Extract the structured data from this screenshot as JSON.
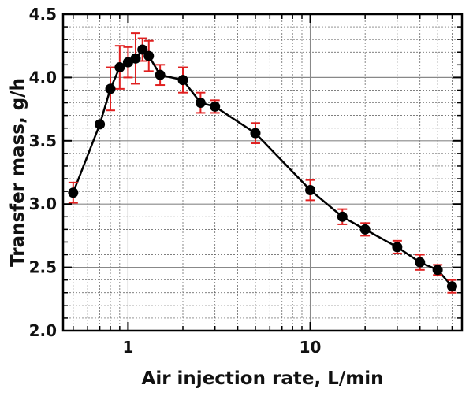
{
  "chart_data": {
    "type": "line",
    "title": "",
    "xlabel": "Air injection rate, L/min",
    "ylabel": "Transfer mass, g/h",
    "xscale": "log",
    "xlim": [
      0.44,
      68
    ],
    "ylim": [
      2.0,
      4.5
    ],
    "xticks": [
      {
        "value": 1,
        "label": "1"
      },
      {
        "value": 10,
        "label": "10"
      }
    ],
    "yticks": [
      {
        "value": 2.0,
        "label": "2.0"
      },
      {
        "value": 2.5,
        "label": "2.5"
      },
      {
        "value": 3.0,
        "label": "3.0"
      },
      {
        "value": 3.5,
        "label": "3.5"
      },
      {
        "value": 4.0,
        "label": "4.0"
      },
      {
        "value": 4.5,
        "label": "4.5"
      }
    ],
    "grid": true,
    "marker_color": "#000000",
    "errorbar_color": "#e02020",
    "series": [
      {
        "x": [
          0.5,
          0.7,
          0.8,
          0.9,
          1.0,
          1.1,
          1.2,
          1.3,
          1.5,
          2.0,
          2.5,
          3.0,
          5.0,
          10.0,
          15.0,
          20.0,
          30.0,
          40.0,
          50.0,
          60.0
        ],
        "y": [
          3.09,
          3.63,
          3.91,
          4.08,
          4.12,
          4.15,
          4.22,
          4.17,
          4.02,
          3.98,
          3.8,
          3.77,
          3.56,
          3.11,
          2.9,
          2.8,
          2.66,
          2.54,
          2.48,
          2.35
        ],
        "err": [
          0.08,
          0.0,
          0.17,
          0.17,
          0.12,
          0.2,
          0.09,
          0.12,
          0.08,
          0.1,
          0.08,
          0.05,
          0.08,
          0.08,
          0.06,
          0.05,
          0.05,
          0.06,
          0.04,
          0.05
        ]
      }
    ]
  }
}
